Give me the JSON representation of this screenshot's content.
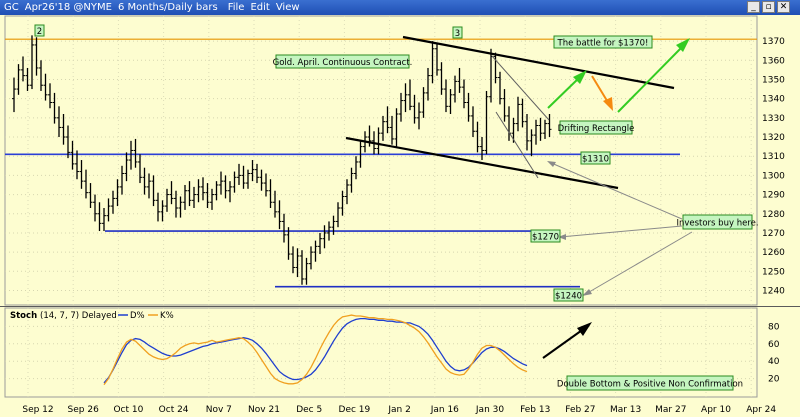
{
  "window": {
    "symbol": "GC",
    "quote": "Apr26'18 @NYME",
    "interval": "6 Months/Daily bars",
    "menu": [
      "File",
      "Edit",
      "View"
    ],
    "buttons": [
      "_",
      "▫",
      "✕"
    ]
  },
  "stoch_header": {
    "label": "Stoch",
    "params": "(14, 7, 7) Delayed",
    "d_label": "D%",
    "k_label": "K%",
    "d_color": "#1f3fcf",
    "k_color": "#f0a020"
  },
  "chart_data": [
    {
      "type": "ohlc",
      "title": "Gold. April. Continuous Contract.",
      "x_tick_labels": [
        "Sep 12",
        "Sep 26",
        "Oct 10",
        "Oct 24",
        "Nov 7",
        "Nov 21",
        "Dec 5",
        "Dec 19",
        "Jan 2",
        "Jan 16",
        "Jan 30",
        "Feb 13",
        "Feb 27",
        "Mar 13",
        "Mar 27",
        "Apr 10",
        "Apr 24"
      ],
      "y_ticks": [
        1240,
        1250,
        1260,
        1270,
        1280,
        1290,
        1300,
        1310,
        1320,
        1330,
        1340,
        1350,
        1360,
        1370
      ],
      "ylim": [
        1234,
        1381
      ],
      "ohlc": [
        [
          1340,
          1351,
          1333,
          1345
        ],
        [
          1345,
          1358,
          1342,
          1355
        ],
        [
          1355,
          1362,
          1349,
          1352
        ],
        [
          1352,
          1356,
          1344,
          1347
        ],
        [
          1347,
          1373,
          1345,
          1368
        ],
        [
          1368,
          1372,
          1352,
          1356
        ],
        [
          1356,
          1360,
          1344,
          1347
        ],
        [
          1347,
          1353,
          1339,
          1342
        ],
        [
          1342,
          1348,
          1335,
          1338
        ],
        [
          1338,
          1343,
          1327,
          1330
        ],
        [
          1330,
          1336,
          1320,
          1325
        ],
        [
          1325,
          1332,
          1316,
          1320
        ],
        [
          1320,
          1326,
          1309,
          1312
        ],
        [
          1312,
          1318,
          1303,
          1306
        ],
        [
          1306,
          1313,
          1298,
          1302
        ],
        [
          1302,
          1308,
          1293,
          1297
        ],
        [
          1297,
          1303,
          1288,
          1291
        ],
        [
          1291,
          1296,
          1283,
          1286
        ],
        [
          1286,
          1290,
          1276,
          1280
        ],
        [
          1280,
          1286,
          1271,
          1275
        ],
        [
          1275,
          1283,
          1271,
          1279
        ],
        [
          1279,
          1288,
          1276,
          1284
        ],
        [
          1284,
          1292,
          1280,
          1288
        ],
        [
          1288,
          1298,
          1284,
          1294
        ],
        [
          1294,
          1305,
          1290,
          1301
        ],
        [
          1301,
          1312,
          1297,
          1308
        ],
        [
          1308,
          1318,
          1303,
          1313
        ],
        [
          1313,
          1319,
          1304,
          1307
        ],
        [
          1307,
          1311,
          1296,
          1299
        ],
        [
          1299,
          1304,
          1290,
          1294
        ],
        [
          1294,
          1301,
          1288,
          1297
        ],
        [
          1297,
          1300,
          1284,
          1287
        ],
        [
          1287,
          1291,
          1276,
          1281
        ],
        [
          1281,
          1287,
          1276,
          1284
        ],
        [
          1284,
          1293,
          1281,
          1290
        ],
        [
          1290,
          1297,
          1285,
          1288
        ],
        [
          1288,
          1292,
          1278,
          1283
        ],
        [
          1283,
          1289,
          1278,
          1286
        ],
        [
          1286,
          1295,
          1282,
          1292
        ],
        [
          1292,
          1297,
          1284,
          1287
        ],
        [
          1287,
          1294,
          1283,
          1290
        ],
        [
          1290,
          1298,
          1286,
          1294
        ],
        [
          1294,
          1299,
          1287,
          1291
        ],
        [
          1291,
          1296,
          1283,
          1286
        ],
        [
          1286,
          1293,
          1282,
          1290
        ],
        [
          1290,
          1297,
          1287,
          1295
        ],
        [
          1295,
          1302,
          1290,
          1297
        ],
        [
          1297,
          1300,
          1288,
          1292
        ],
        [
          1292,
          1297,
          1286,
          1294
        ],
        [
          1294,
          1302,
          1291,
          1299
        ],
        [
          1299,
          1306,
          1295,
          1300
        ],
        [
          1300,
          1305,
          1293,
          1296
        ],
        [
          1296,
          1303,
          1293,
          1301
        ],
        [
          1301,
          1308,
          1297,
          1303
        ],
        [
          1303,
          1306,
          1296,
          1299
        ],
        [
          1299,
          1303,
          1292,
          1296
        ],
        [
          1296,
          1301,
          1289,
          1292
        ],
        [
          1292,
          1298,
          1283,
          1286
        ],
        [
          1286,
          1292,
          1278,
          1281
        ],
        [
          1281,
          1287,
          1272,
          1276
        ],
        [
          1276,
          1280,
          1265,
          1269
        ],
        [
          1269,
          1273,
          1256,
          1259
        ],
        [
          1259,
          1263,
          1249,
          1252
        ],
        [
          1252,
          1262,
          1247,
          1258
        ],
        [
          1258,
          1261,
          1243,
          1246
        ],
        [
          1246,
          1257,
          1243,
          1254
        ],
        [
          1254,
          1263,
          1251,
          1260
        ],
        [
          1260,
          1266,
          1255,
          1263
        ],
        [
          1263,
          1270,
          1259,
          1267
        ],
        [
          1267,
          1274,
          1262,
          1270
        ],
        [
          1270,
          1276,
          1266,
          1273
        ],
        [
          1273,
          1279,
          1269,
          1276
        ],
        [
          1276,
          1286,
          1273,
          1283
        ],
        [
          1283,
          1292,
          1279,
          1289
        ],
        [
          1289,
          1298,
          1285,
          1295
        ],
        [
          1295,
          1304,
          1291,
          1301
        ],
        [
          1301,
          1310,
          1298,
          1307
        ],
        [
          1307,
          1318,
          1304,
          1315
        ],
        [
          1315,
          1323,
          1312,
          1320
        ],
        [
          1320,
          1326,
          1315,
          1318
        ],
        [
          1318,
          1323,
          1311,
          1314
        ],
        [
          1314,
          1325,
          1311,
          1322
        ],
        [
          1322,
          1331,
          1318,
          1328
        ],
        [
          1328,
          1336,
          1322,
          1325
        ],
        [
          1325,
          1331,
          1316,
          1319
        ],
        [
          1319,
          1335,
          1315,
          1332
        ],
        [
          1332,
          1343,
          1328,
          1339
        ],
        [
          1339,
          1348,
          1333,
          1342
        ],
        [
          1342,
          1350,
          1334,
          1336
        ],
        [
          1336,
          1342,
          1327,
          1330
        ],
        [
          1330,
          1338,
          1324,
          1333
        ],
        [
          1333,
          1346,
          1330,
          1343
        ],
        [
          1343,
          1356,
          1339,
          1352
        ],
        [
          1352,
          1370,
          1348,
          1366
        ],
        [
          1366,
          1369,
          1352,
          1355
        ],
        [
          1355,
          1359,
          1342,
          1345
        ],
        [
          1345,
          1350,
          1333,
          1336
        ],
        [
          1336,
          1345,
          1332,
          1342
        ],
        [
          1342,
          1352,
          1338,
          1349
        ],
        [
          1349,
          1356,
          1343,
          1346
        ],
        [
          1346,
          1350,
          1335,
          1338
        ],
        [
          1338,
          1343,
          1328,
          1331
        ],
        [
          1331,
          1336,
          1320,
          1323
        ],
        [
          1323,
          1328,
          1312,
          1315
        ],
        [
          1315,
          1320,
          1308,
          1313
        ],
        [
          1313,
          1344,
          1311,
          1341
        ],
        [
          1341,
          1366,
          1338,
          1362
        ],
        [
          1362,
          1364,
          1348,
          1351
        ],
        [
          1351,
          1354,
          1337,
          1340
        ],
        [
          1340,
          1345,
          1328,
          1331
        ],
        [
          1331,
          1336,
          1318,
          1322
        ],
        [
          1322,
          1330,
          1317,
          1327
        ],
        [
          1327,
          1341,
          1323,
          1337
        ],
        [
          1337,
          1340,
          1325,
          1328
        ],
        [
          1328,
          1332,
          1313,
          1318
        ],
        [
          1318,
          1324,
          1310,
          1321
        ],
        [
          1321,
          1329,
          1316,
          1326
        ],
        [
          1326,
          1330,
          1318,
          1322
        ],
        [
          1322,
          1329,
          1319,
          1327
        ],
        [
          1327,
          1332,
          1320,
          1324
        ]
      ],
      "horizontal_levels": [
        {
          "value": 1371,
          "color": "#e69500",
          "label": "$1370"
        },
        {
          "value": 1311,
          "color": "#2b3fd6",
          "label": "$1310"
        },
        {
          "value": 1271,
          "color": "#1f2fc4",
          "label": "$1270"
        },
        {
          "value": 1242,
          "color": "#1f2fc4",
          "label": "$1240"
        }
      ],
      "annotations": [
        "The battle for $1370!",
        "Drifting Rectangle",
        "$1310",
        "Investors buy here.",
        "$1270",
        "$1240"
      ],
      "wave_labels": [
        "2",
        "3"
      ]
    },
    {
      "type": "line",
      "title": "Stoch",
      "y_ticks": [
        20,
        40,
        60,
        80
      ],
      "ylim": [
        0,
        100
      ],
      "series": [
        {
          "name": "D%",
          "color": "#1f3fcf",
          "values": [
            null,
            null,
            null,
            null,
            null,
            null,
            null,
            null,
            null,
            null,
            null,
            null,
            null,
            null,
            null,
            null,
            null,
            null,
            null,
            null,
            15,
            21,
            30,
            40,
            50,
            59,
            64,
            66,
            65,
            62,
            58,
            55,
            52,
            49,
            47,
            46,
            46,
            47,
            49,
            51,
            53,
            55,
            57,
            58,
            60,
            61,
            62,
            63,
            64,
            65,
            66,
            67,
            66,
            64,
            60,
            55,
            49,
            42,
            35,
            28,
            24,
            21,
            19,
            19,
            20,
            22,
            25,
            30,
            37,
            45,
            54,
            63,
            71,
            78,
            83,
            86,
            88,
            89,
            89,
            88,
            88,
            87,
            87,
            86,
            86,
            85,
            85,
            84,
            84,
            82,
            80,
            76,
            71,
            64,
            56,
            48,
            40,
            34,
            30,
            29,
            30,
            33,
            38,
            44,
            50,
            54,
            56,
            56,
            54,
            51,
            47,
            43,
            40,
            37,
            35
          ]
        },
        {
          "name": "K%",
          "color": "#f0a020",
          "values": [
            null,
            null,
            null,
            null,
            null,
            null,
            null,
            null,
            null,
            null,
            null,
            null,
            null,
            null,
            null,
            null,
            null,
            null,
            null,
            null,
            13,
            20,
            31,
            43,
            54,
            62,
            65,
            63,
            58,
            53,
            48,
            45,
            43,
            42,
            43,
            46,
            50,
            55,
            58,
            60,
            61,
            60,
            61,
            62,
            64,
            62,
            63,
            64,
            65,
            66,
            67,
            66,
            62,
            57,
            50,
            42,
            34,
            26,
            20,
            17,
            15,
            14,
            14,
            15,
            19,
            25,
            33,
            43,
            54,
            64,
            73,
            81,
            87,
            91,
            92,
            93,
            92,
            92,
            91,
            90,
            90,
            89,
            89,
            88,
            88,
            87,
            86,
            84,
            81,
            78,
            74,
            68,
            61,
            53,
            45,
            38,
            31,
            27,
            25,
            24,
            25,
            31,
            39,
            48,
            55,
            58,
            58,
            56,
            52,
            47,
            42,
            37,
            33,
            30,
            28
          ]
        }
      ],
      "annotations": [
        "Double Bottom & Positive Non Confirmation"
      ]
    }
  ]
}
